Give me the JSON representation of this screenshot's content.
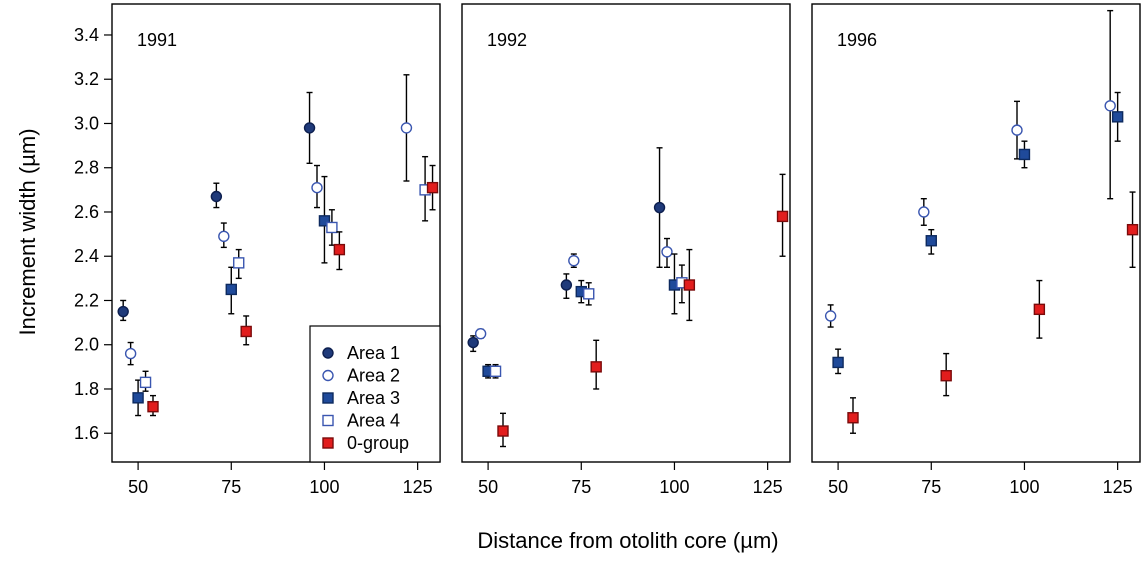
{
  "chart_data": {
    "type": "scatter",
    "xlabel": "Distance from otolith core (µm)",
    "ylabel": "Increment width (µm)",
    "x_ticks": [
      50,
      75,
      100,
      125
    ],
    "y_ticks": [
      "1.6",
      "1.8",
      "2.0",
      "2.2",
      "2.4",
      "2.6",
      "2.8",
      "3.0",
      "3.2",
      "3.4"
    ],
    "xlim": [
      43,
      131
    ],
    "ylim": [
      1.47,
      3.54
    ],
    "legend": {
      "placement": "bottom-right of first panel",
      "entries": [
        "Area 1",
        "Area 2",
        "Area 3",
        "Area 4",
        "0-group"
      ]
    },
    "series_styles": [
      {
        "name": "Area 1",
        "marker": "circle",
        "fill": "#1f3a7a",
        "stroke": "#0d1f4f"
      },
      {
        "name": "Area 2",
        "marker": "circle",
        "fill": "#ffffff",
        "stroke": "#3a56b0"
      },
      {
        "name": "Area 3",
        "marker": "square",
        "fill": "#1f4a9a",
        "stroke": "#0d2a5f"
      },
      {
        "name": "Area 4",
        "marker": "square",
        "fill": "#ffffff",
        "stroke": "#3a56b0"
      },
      {
        "name": "0-group",
        "marker": "square",
        "fill": "#e21d1d",
        "stroke": "#7a0a0a"
      }
    ],
    "panels": [
      {
        "title": "1991",
        "series": [
          {
            "name": "Area 1",
            "points": [
              {
                "x": 46,
                "y": 2.15,
                "lo": 2.11,
                "hi": 2.2
              },
              {
                "x": 71,
                "y": 2.67,
                "lo": 2.62,
                "hi": 2.73
              },
              {
                "x": 96,
                "y": 2.98,
                "lo": 2.82,
                "hi": 3.14
              }
            ]
          },
          {
            "name": "Area 2",
            "points": [
              {
                "x": 48,
                "y": 1.96,
                "lo": 1.91,
                "hi": 2.01
              },
              {
                "x": 73,
                "y": 2.49,
                "lo": 2.44,
                "hi": 2.55
              },
              {
                "x": 98,
                "y": 2.71,
                "lo": 2.62,
                "hi": 2.81
              },
              {
                "x": 122,
                "y": 2.98,
                "lo": 2.74,
                "hi": 3.22
              }
            ]
          },
          {
            "name": "Area 3",
            "points": [
              {
                "x": 50,
                "y": 1.76,
                "lo": 1.68,
                "hi": 1.84
              },
              {
                "x": 75,
                "y": 2.25,
                "lo": 2.14,
                "hi": 2.35
              },
              {
                "x": 100,
                "y": 2.56,
                "lo": 2.37,
                "hi": 2.76
              }
            ]
          },
          {
            "name": "Area 4",
            "points": [
              {
                "x": 52,
                "y": 1.83,
                "lo": 1.79,
                "hi": 1.88
              },
              {
                "x": 77,
                "y": 2.37,
                "lo": 2.3,
                "hi": 2.43
              },
              {
                "x": 102,
                "y": 2.53,
                "lo": 2.45,
                "hi": 2.61
              },
              {
                "x": 127,
                "y": 2.7,
                "lo": 2.56,
                "hi": 2.85
              }
            ]
          },
          {
            "name": "0-group",
            "points": [
              {
                "x": 54,
                "y": 1.72,
                "lo": 1.68,
                "hi": 1.77
              },
              {
                "x": 79,
                "y": 2.06,
                "lo": 2.0,
                "hi": 2.13
              },
              {
                "x": 104,
                "y": 2.43,
                "lo": 2.34,
                "hi": 2.51
              },
              {
                "x": 129,
                "y": 2.71,
                "lo": 2.61,
                "hi": 2.81
              }
            ]
          }
        ]
      },
      {
        "title": "1992",
        "series": [
          {
            "name": "Area 1",
            "points": [
              {
                "x": 46,
                "y": 2.01,
                "lo": 1.97,
                "hi": 2.04
              },
              {
                "x": 71,
                "y": 2.27,
                "lo": 2.21,
                "hi": 2.32
              },
              {
                "x": 96,
                "y": 2.62,
                "lo": 2.35,
                "hi": 2.89
              }
            ]
          },
          {
            "name": "Area 2",
            "points": [
              {
                "x": 48,
                "y": 2.05,
                "lo": 2.03,
                "hi": 2.07
              },
              {
                "x": 73,
                "y": 2.38,
                "lo": 2.35,
                "hi": 2.41
              },
              {
                "x": 98,
                "y": 2.42,
                "lo": 2.35,
                "hi": 2.48
              }
            ]
          },
          {
            "name": "Area 3",
            "points": [
              {
                "x": 50,
                "y": 1.88,
                "lo": 1.85,
                "hi": 1.91
              },
              {
                "x": 75,
                "y": 2.24,
                "lo": 2.19,
                "hi": 2.29
              },
              {
                "x": 100,
                "y": 2.27,
                "lo": 2.14,
                "hi": 2.41
              }
            ]
          },
          {
            "name": "Area 4",
            "points": [
              {
                "x": 52,
                "y": 1.88,
                "lo": 1.85,
                "hi": 1.91
              },
              {
                "x": 77,
                "y": 2.23,
                "lo": 2.18,
                "hi": 2.28
              },
              {
                "x": 102,
                "y": 2.28,
                "lo": 2.19,
                "hi": 2.36
              }
            ]
          },
          {
            "name": "0-group",
            "points": [
              {
                "x": 54,
                "y": 1.61,
                "lo": 1.54,
                "hi": 1.69
              },
              {
                "x": 79,
                "y": 1.9,
                "lo": 1.8,
                "hi": 2.02
              },
              {
                "x": 104,
                "y": 2.27,
                "lo": 2.11,
                "hi": 2.43
              },
              {
                "x": 129,
                "y": 2.58,
                "lo": 2.4,
                "hi": 2.77
              }
            ]
          }
        ]
      },
      {
        "title": "1996",
        "series": [
          {
            "name": "Area 2",
            "points": [
              {
                "x": 48,
                "y": 2.13,
                "lo": 2.08,
                "hi": 2.18
              },
              {
                "x": 73,
                "y": 2.6,
                "lo": 2.54,
                "hi": 2.66
              },
              {
                "x": 98,
                "y": 2.97,
                "lo": 2.84,
                "hi": 3.1
              },
              {
                "x": 123,
                "y": 3.08,
                "lo": 2.66,
                "hi": 3.51
              }
            ]
          },
          {
            "name": "Area 3",
            "points": [
              {
                "x": 50,
                "y": 1.92,
                "lo": 1.87,
                "hi": 1.98
              },
              {
                "x": 75,
                "y": 2.47,
                "lo": 2.41,
                "hi": 2.52
              },
              {
                "x": 100,
                "y": 2.86,
                "lo": 2.8,
                "hi": 2.92
              },
              {
                "x": 125,
                "y": 3.03,
                "lo": 2.92,
                "hi": 3.14
              }
            ]
          },
          {
            "name": "0-group",
            "points": [
              {
                "x": 54,
                "y": 1.67,
                "lo": 1.6,
                "hi": 1.76
              },
              {
                "x": 79,
                "y": 1.86,
                "lo": 1.77,
                "hi": 1.96
              },
              {
                "x": 104,
                "y": 2.16,
                "lo": 2.03,
                "hi": 2.29
              },
              {
                "x": 129,
                "y": 2.52,
                "lo": 2.35,
                "hi": 2.69
              }
            ]
          }
        ]
      }
    ]
  }
}
